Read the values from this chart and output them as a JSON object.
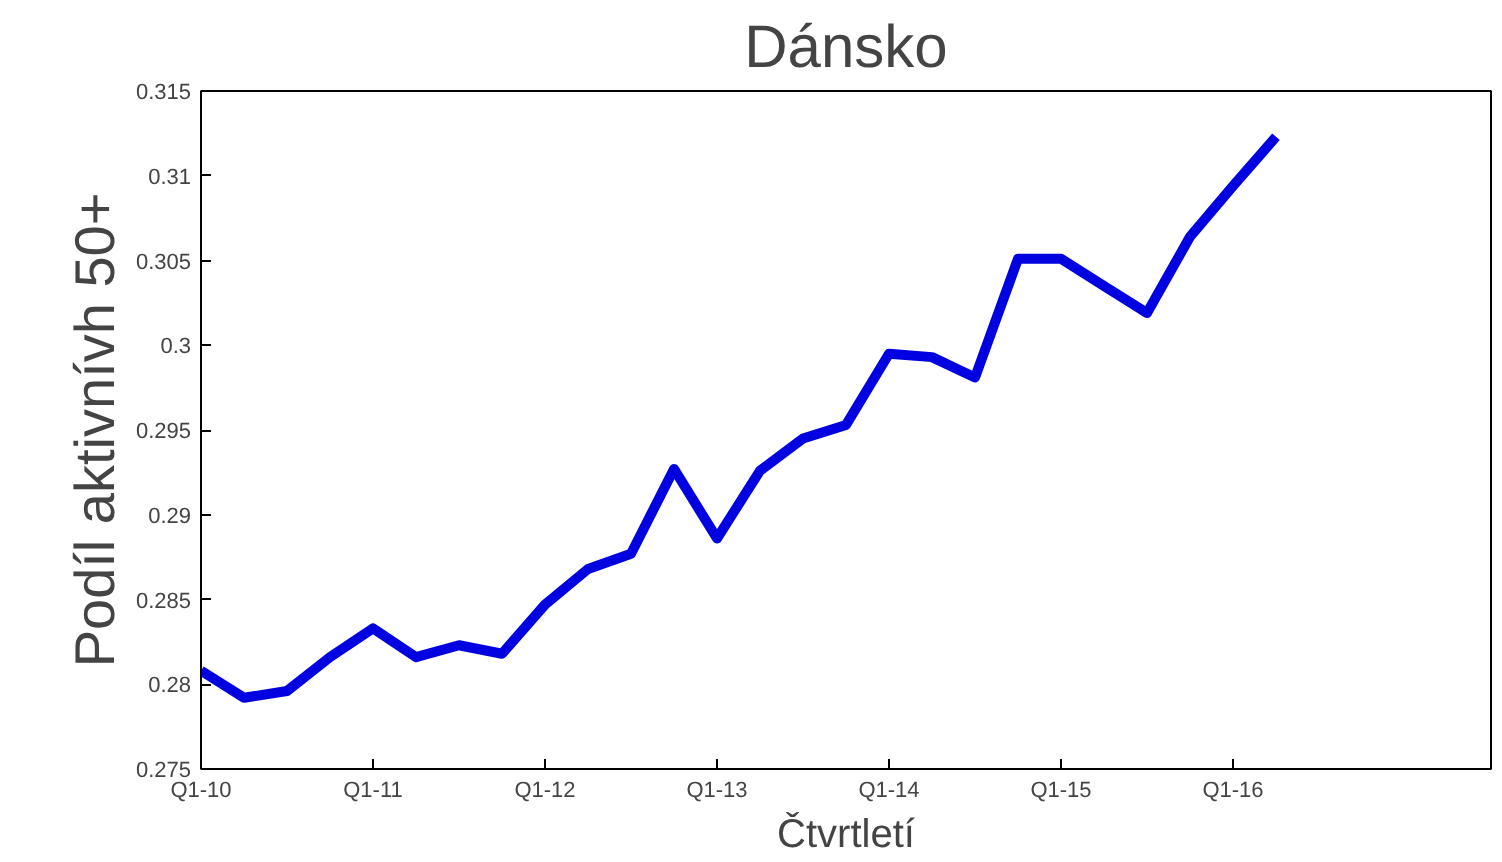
{
  "chart_data": {
    "type": "line",
    "title": "Dánsko",
    "xlabel": "Čtvrtletí",
    "ylabel": "Podíl aktivnívh 50+",
    "categories": [
      "Q1-10",
      null,
      null,
      null,
      "Q1-11",
      null,
      null,
      null,
      "Q1-12",
      null,
      null,
      null,
      "Q1-13",
      null,
      null,
      null,
      "Q1-14",
      null,
      null,
      null,
      "Q1-15",
      null,
      null,
      null,
      "Q1-16",
      null,
      null,
      null,
      null,
      null,
      null
    ],
    "series": [
      {
        "color": "#0000e0",
        "values": [
          0.2808,
          0.2792,
          0.2796,
          0.2816,
          0.2833,
          0.2816,
          0.2823,
          0.2818,
          0.2847,
          0.2868,
          0.2877,
          0.2927,
          0.2886,
          0.2926,
          0.2945,
          0.2953,
          0.2995,
          0.2993,
          0.2981,
          0.3051,
          0.3051,
          0.3035,
          0.3019,
          0.3064,
          0.3094,
          0.3123,
          null,
          null,
          null,
          null,
          null
        ]
      }
    ],
    "ylim": [
      0.275,
      0.315
    ],
    "yticks": [
      0.275,
      0.28,
      0.285,
      0.29,
      0.295,
      0.3,
      0.305,
      0.31,
      0.315
    ],
    "grid": false,
    "marker": "none",
    "line_style": "solid"
  }
}
